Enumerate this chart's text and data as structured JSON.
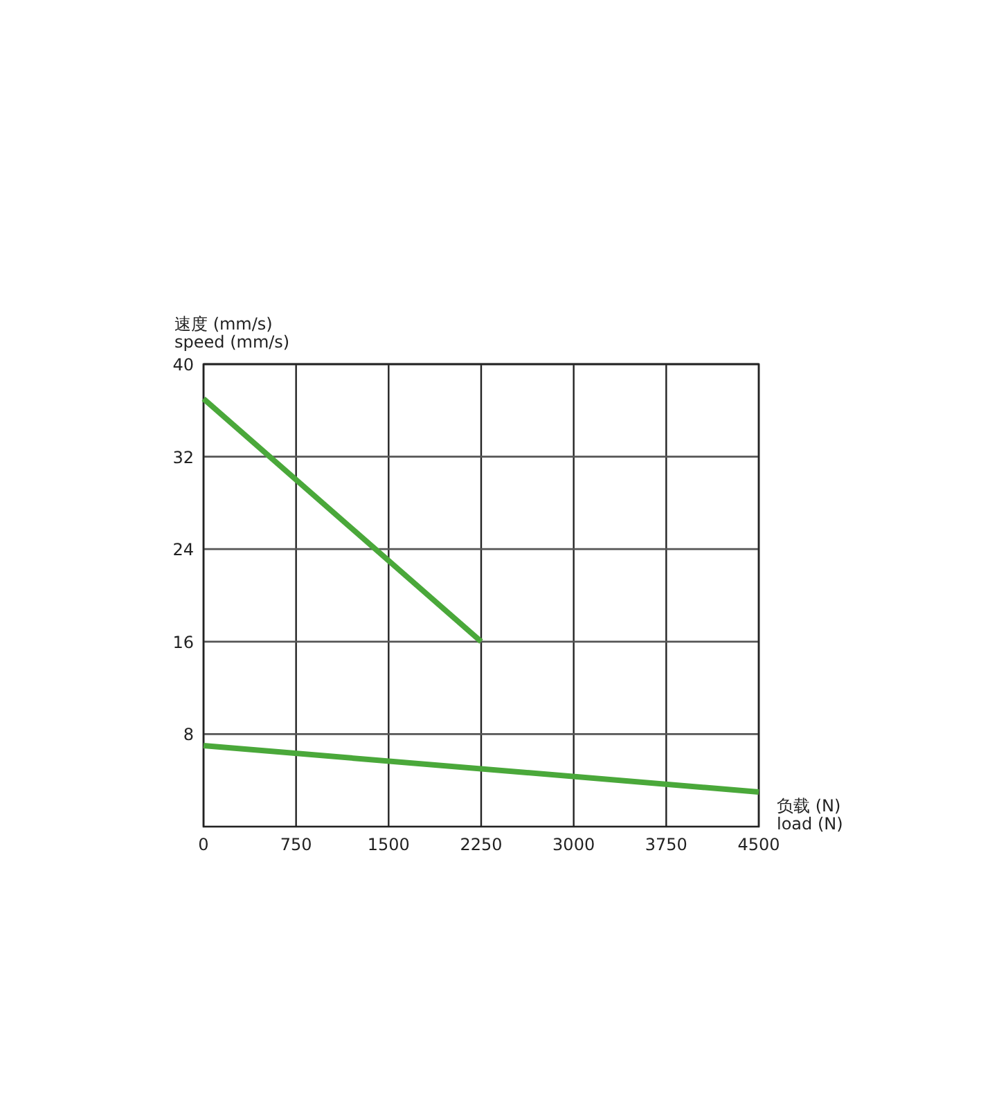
{
  "chart_data": {
    "type": "line",
    "xlabel": "负载 (N)\nload (N)",
    "ylabel": "速度 (mm/s)\nspeed (mm/s)",
    "xlim": [
      0,
      4500
    ],
    "xticks": [
      0,
      750,
      1500,
      2250,
      3000,
      3750,
      4500
    ],
    "ylim": [
      0,
      40
    ],
    "yticks": [
      8,
      16,
      24,
      32,
      40
    ],
    "grid": true,
    "line_style": "solid",
    "series": [
      {
        "color": "#4aa83a",
        "x": [
          0,
          2250
        ],
        "values": [
          37,
          16
        ]
      },
      {
        "color": "#4aa83a",
        "x": [
          0,
          4500
        ],
        "values": [
          7,
          3
        ]
      }
    ]
  }
}
